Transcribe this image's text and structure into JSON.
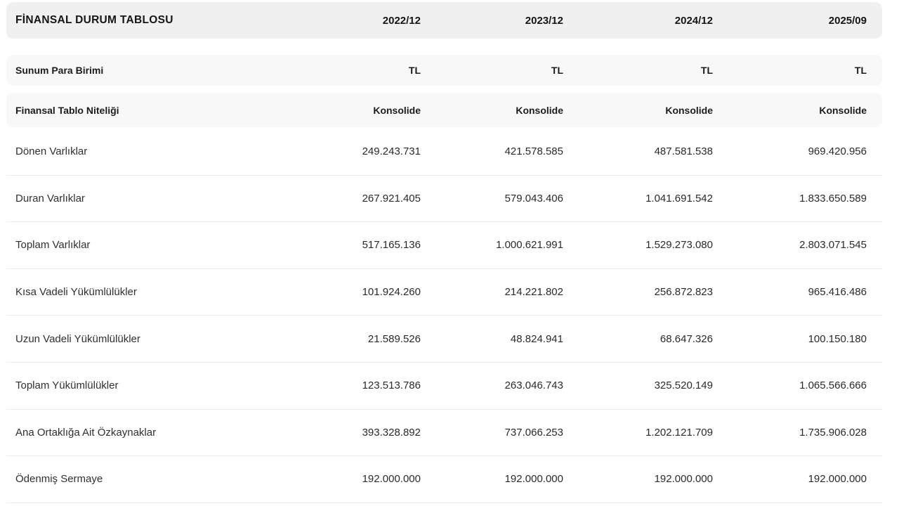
{
  "table": {
    "title": "FİNANSAL DURUM TABLOSU",
    "period_headers": [
      "2022/12",
      "2023/12",
      "2024/12",
      "2025/09"
    ],
    "meta_rows": [
      {
        "label": "Sunum Para Birimi",
        "values": [
          "TL",
          "TL",
          "TL",
          "TL"
        ]
      },
      {
        "label": "Finansal Tablo Niteliği",
        "values": [
          "Konsolide",
          "Konsolide",
          "Konsolide",
          "Konsolide"
        ]
      }
    ],
    "rows": [
      {
        "label": "Dönen Varlıklar",
        "values": [
          "249.243.731",
          "421.578.585",
          "487.581.538",
          "969.420.956"
        ]
      },
      {
        "label": "Duran Varlıklar",
        "values": [
          "267.921.405",
          "579.043.406",
          "1.041.691.542",
          "1.833.650.589"
        ]
      },
      {
        "label": "Toplam Varlıklar",
        "values": [
          "517.165.136",
          "1.000.621.991",
          "1.529.273.080",
          "2.803.071.545"
        ]
      },
      {
        "label": "Kısa Vadeli Yükümlülükler",
        "values": [
          "101.924.260",
          "214.221.802",
          "256.872.823",
          "965.416.486"
        ]
      },
      {
        "label": "Uzun Vadeli Yükümlülükler",
        "values": [
          "21.589.526",
          "48.824.941",
          "68.647.326",
          "100.150.180"
        ]
      },
      {
        "label": "Toplam Yükümlülükler",
        "values": [
          "123.513.786",
          "263.046.743",
          "325.520.149",
          "1.065.566.666"
        ]
      },
      {
        "label": "Ana Ortaklığa Ait Özkaynaklar",
        "values": [
          "393.328.892",
          "737.066.253",
          "1.202.121.709",
          "1.735.906.028"
        ]
      },
      {
        "label": "Ödenmiş Sermaye",
        "values": [
          "192.000.000",
          "192.000.000",
          "192.000.000",
          "192.000.000"
        ]
      }
    ],
    "colors": {
      "header_bg": "#f0f0f0",
      "meta_bg": "#f8f8f8",
      "divider": "#ececec",
      "text": "#1c1c1c"
    }
  }
}
